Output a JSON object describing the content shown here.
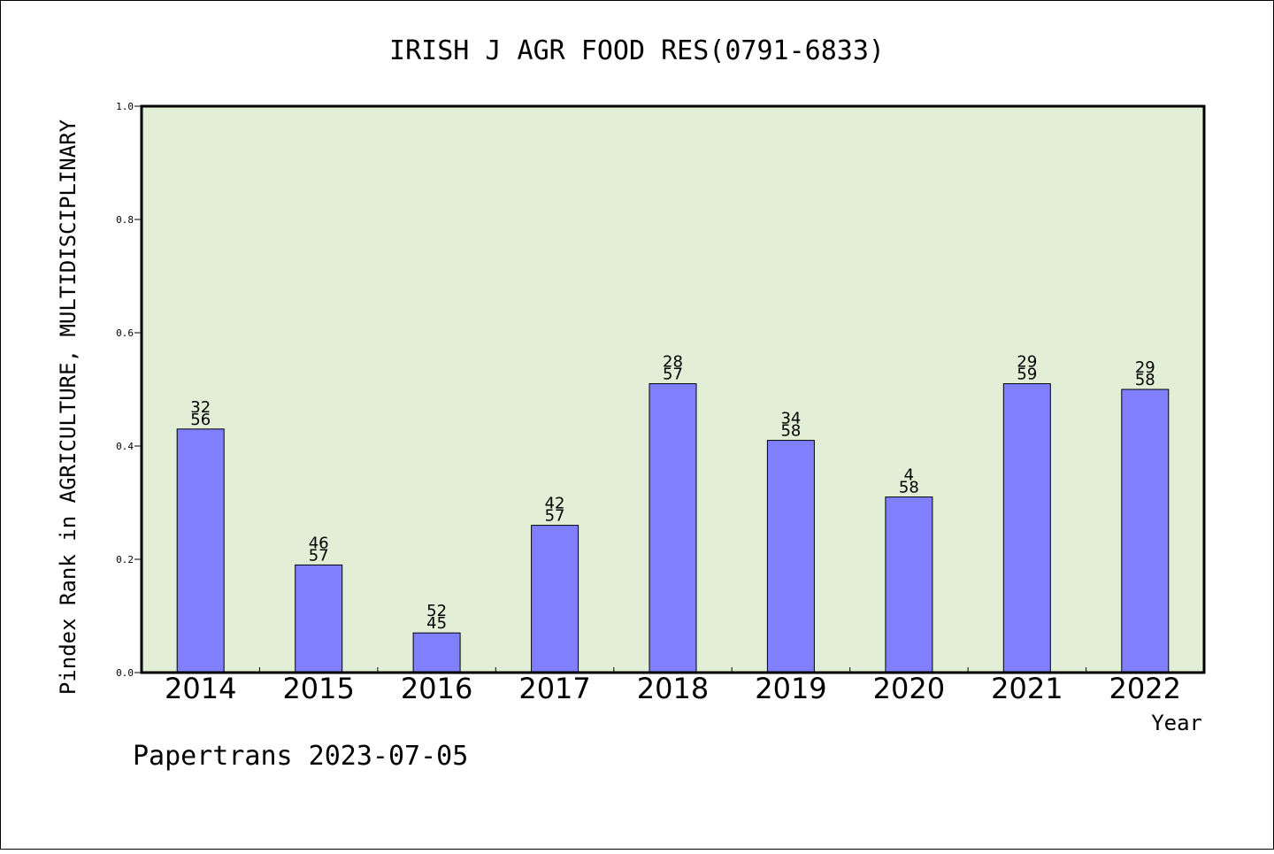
{
  "page": {
    "title": "IRISH J AGR FOOD RES(0791-6833)",
    "footer": "Papertrans 2023-07-05"
  },
  "colors": {
    "plot_background": "#e2efd6",
    "bar_fill": "#8080ff",
    "bar_stroke": "#000000",
    "axis": "#000000"
  },
  "chart_data": {
    "type": "bar",
    "title": "IRISH J AGR FOOD RES(0791-6833)",
    "xlabel": "Year",
    "ylabel": "Pindex Rank in AGRICULTURE, MULTIDISCIPLINARY",
    "ylim": [
      0,
      1.0
    ],
    "yticks": [
      "0.0",
      "0.2",
      "0.4",
      "0.6",
      "0.8",
      "1.0"
    ],
    "grid": false,
    "legend": "none",
    "categories": [
      "2014",
      "2015",
      "2016",
      "2017",
      "2018",
      "2019",
      "2020",
      "2021",
      "2022"
    ],
    "values": [
      0.43,
      0.19,
      0.07,
      0.26,
      0.51,
      0.41,
      0.31,
      0.51,
      0.5
    ],
    "labels_top": [
      "32",
      "46",
      "52",
      "42",
      "28",
      "34",
      "4",
      "29",
      "29"
    ],
    "labels_bottom": [
      "56",
      "57",
      "45",
      "57",
      "57",
      "58",
      "58",
      "59",
      "58"
    ]
  }
}
